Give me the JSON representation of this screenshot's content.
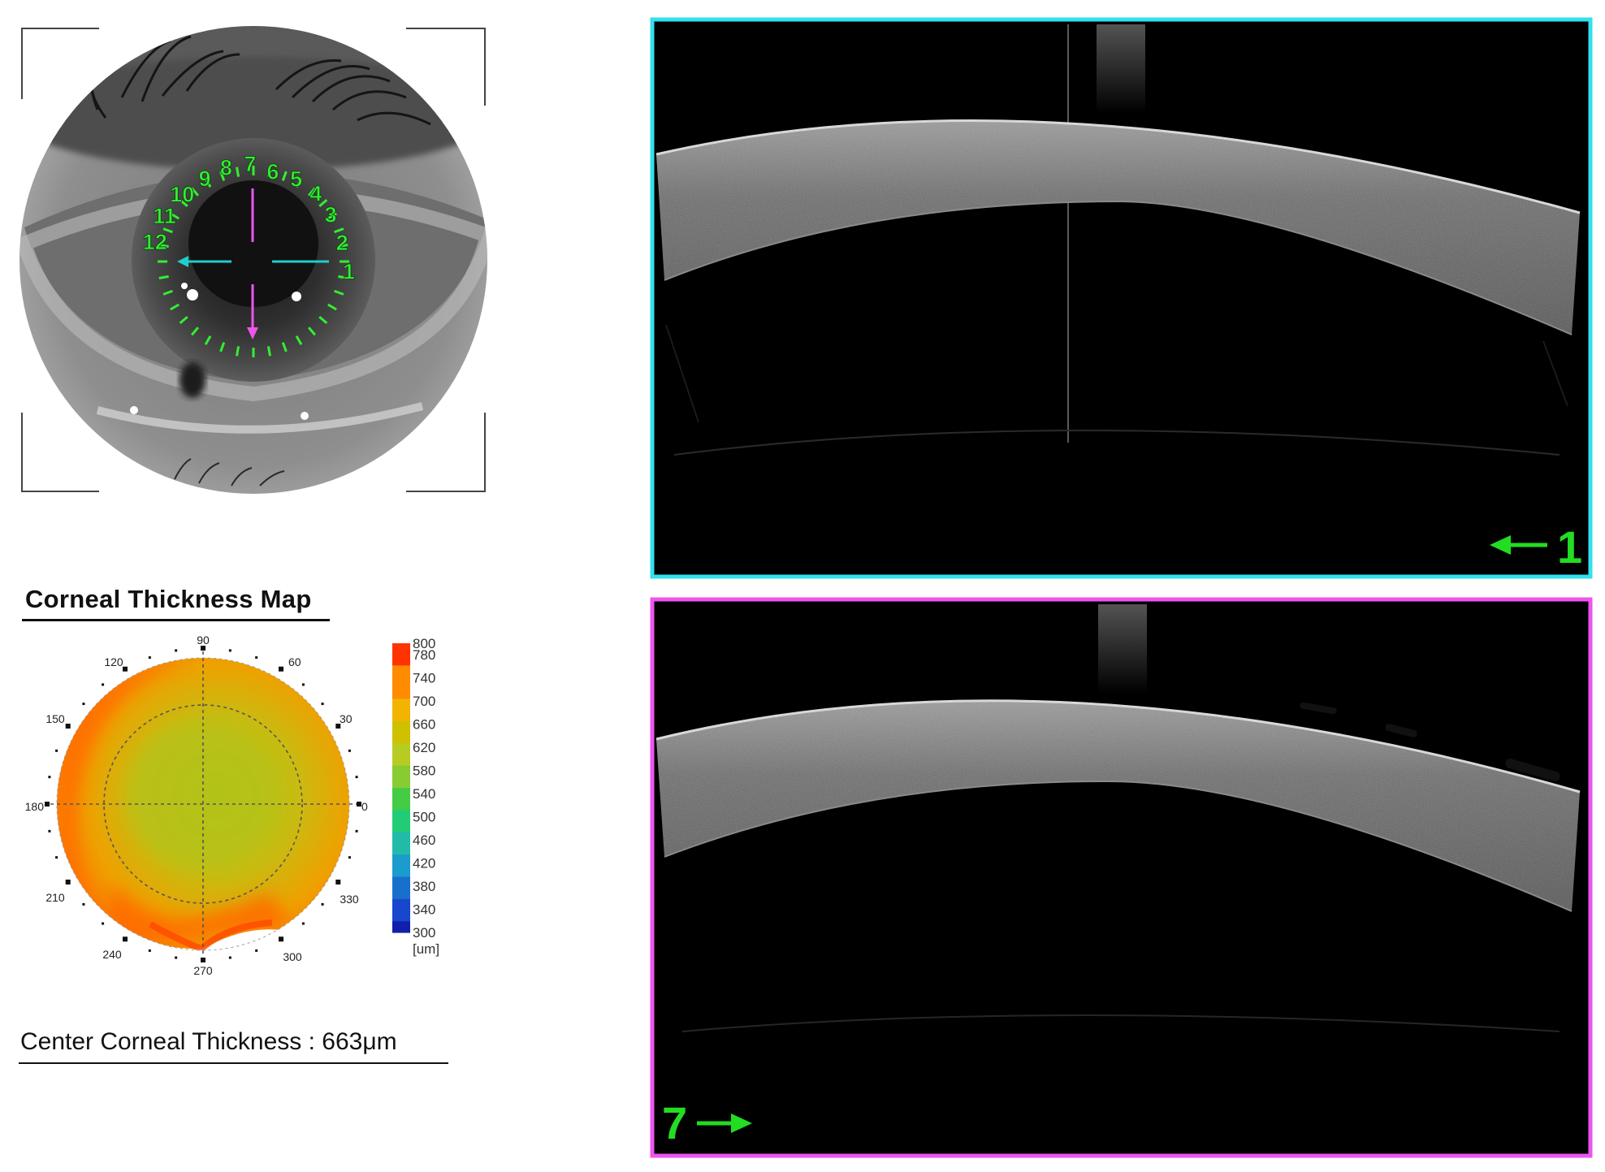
{
  "eye_photo": {
    "clock_labels": [
      "1",
      "2",
      "3",
      "4",
      "5",
      "6",
      "7",
      "8",
      "9",
      "10",
      "11",
      "12"
    ],
    "colors": {
      "clock": "#33ee33",
      "horizontal_scan": "#22cccc",
      "vertical_scan": "#ee55ee"
    }
  },
  "thickness_map": {
    "title": "Corneal  Thickness Map",
    "angle_labels": [
      "0",
      "30",
      "60",
      "90",
      "120",
      "150",
      "180",
      "210",
      "240",
      "270",
      "300",
      "330"
    ],
    "scale_labels": [
      "800",
      "780",
      "740",
      "700",
      "660",
      "620",
      "580",
      "540",
      "500",
      "460",
      "420",
      "380",
      "340",
      "300"
    ],
    "unit_label": "[um]",
    "colors": {
      "800": "#ff3300",
      "740": "#ff8c00",
      "700": "#f2b400",
      "660": "#cfc000",
      "620": "#b6cc22",
      "580": "#88cc33",
      "540": "#44cc44",
      "500": "#22cc77",
      "460": "#22bbaa",
      "420": "#1a9ccc",
      "380": "#1870cc",
      "340": "#1846cc",
      "300": "#1020aa"
    }
  },
  "center_thickness": {
    "text": "Center Corneal Thickness : 663μm",
    "value_um": 663
  },
  "scans": [
    {
      "label": "1",
      "direction": "left",
      "frame_color": "#33e0ee"
    },
    {
      "label": "7",
      "direction": "right",
      "frame_color": "#ee55ee"
    }
  ]
}
